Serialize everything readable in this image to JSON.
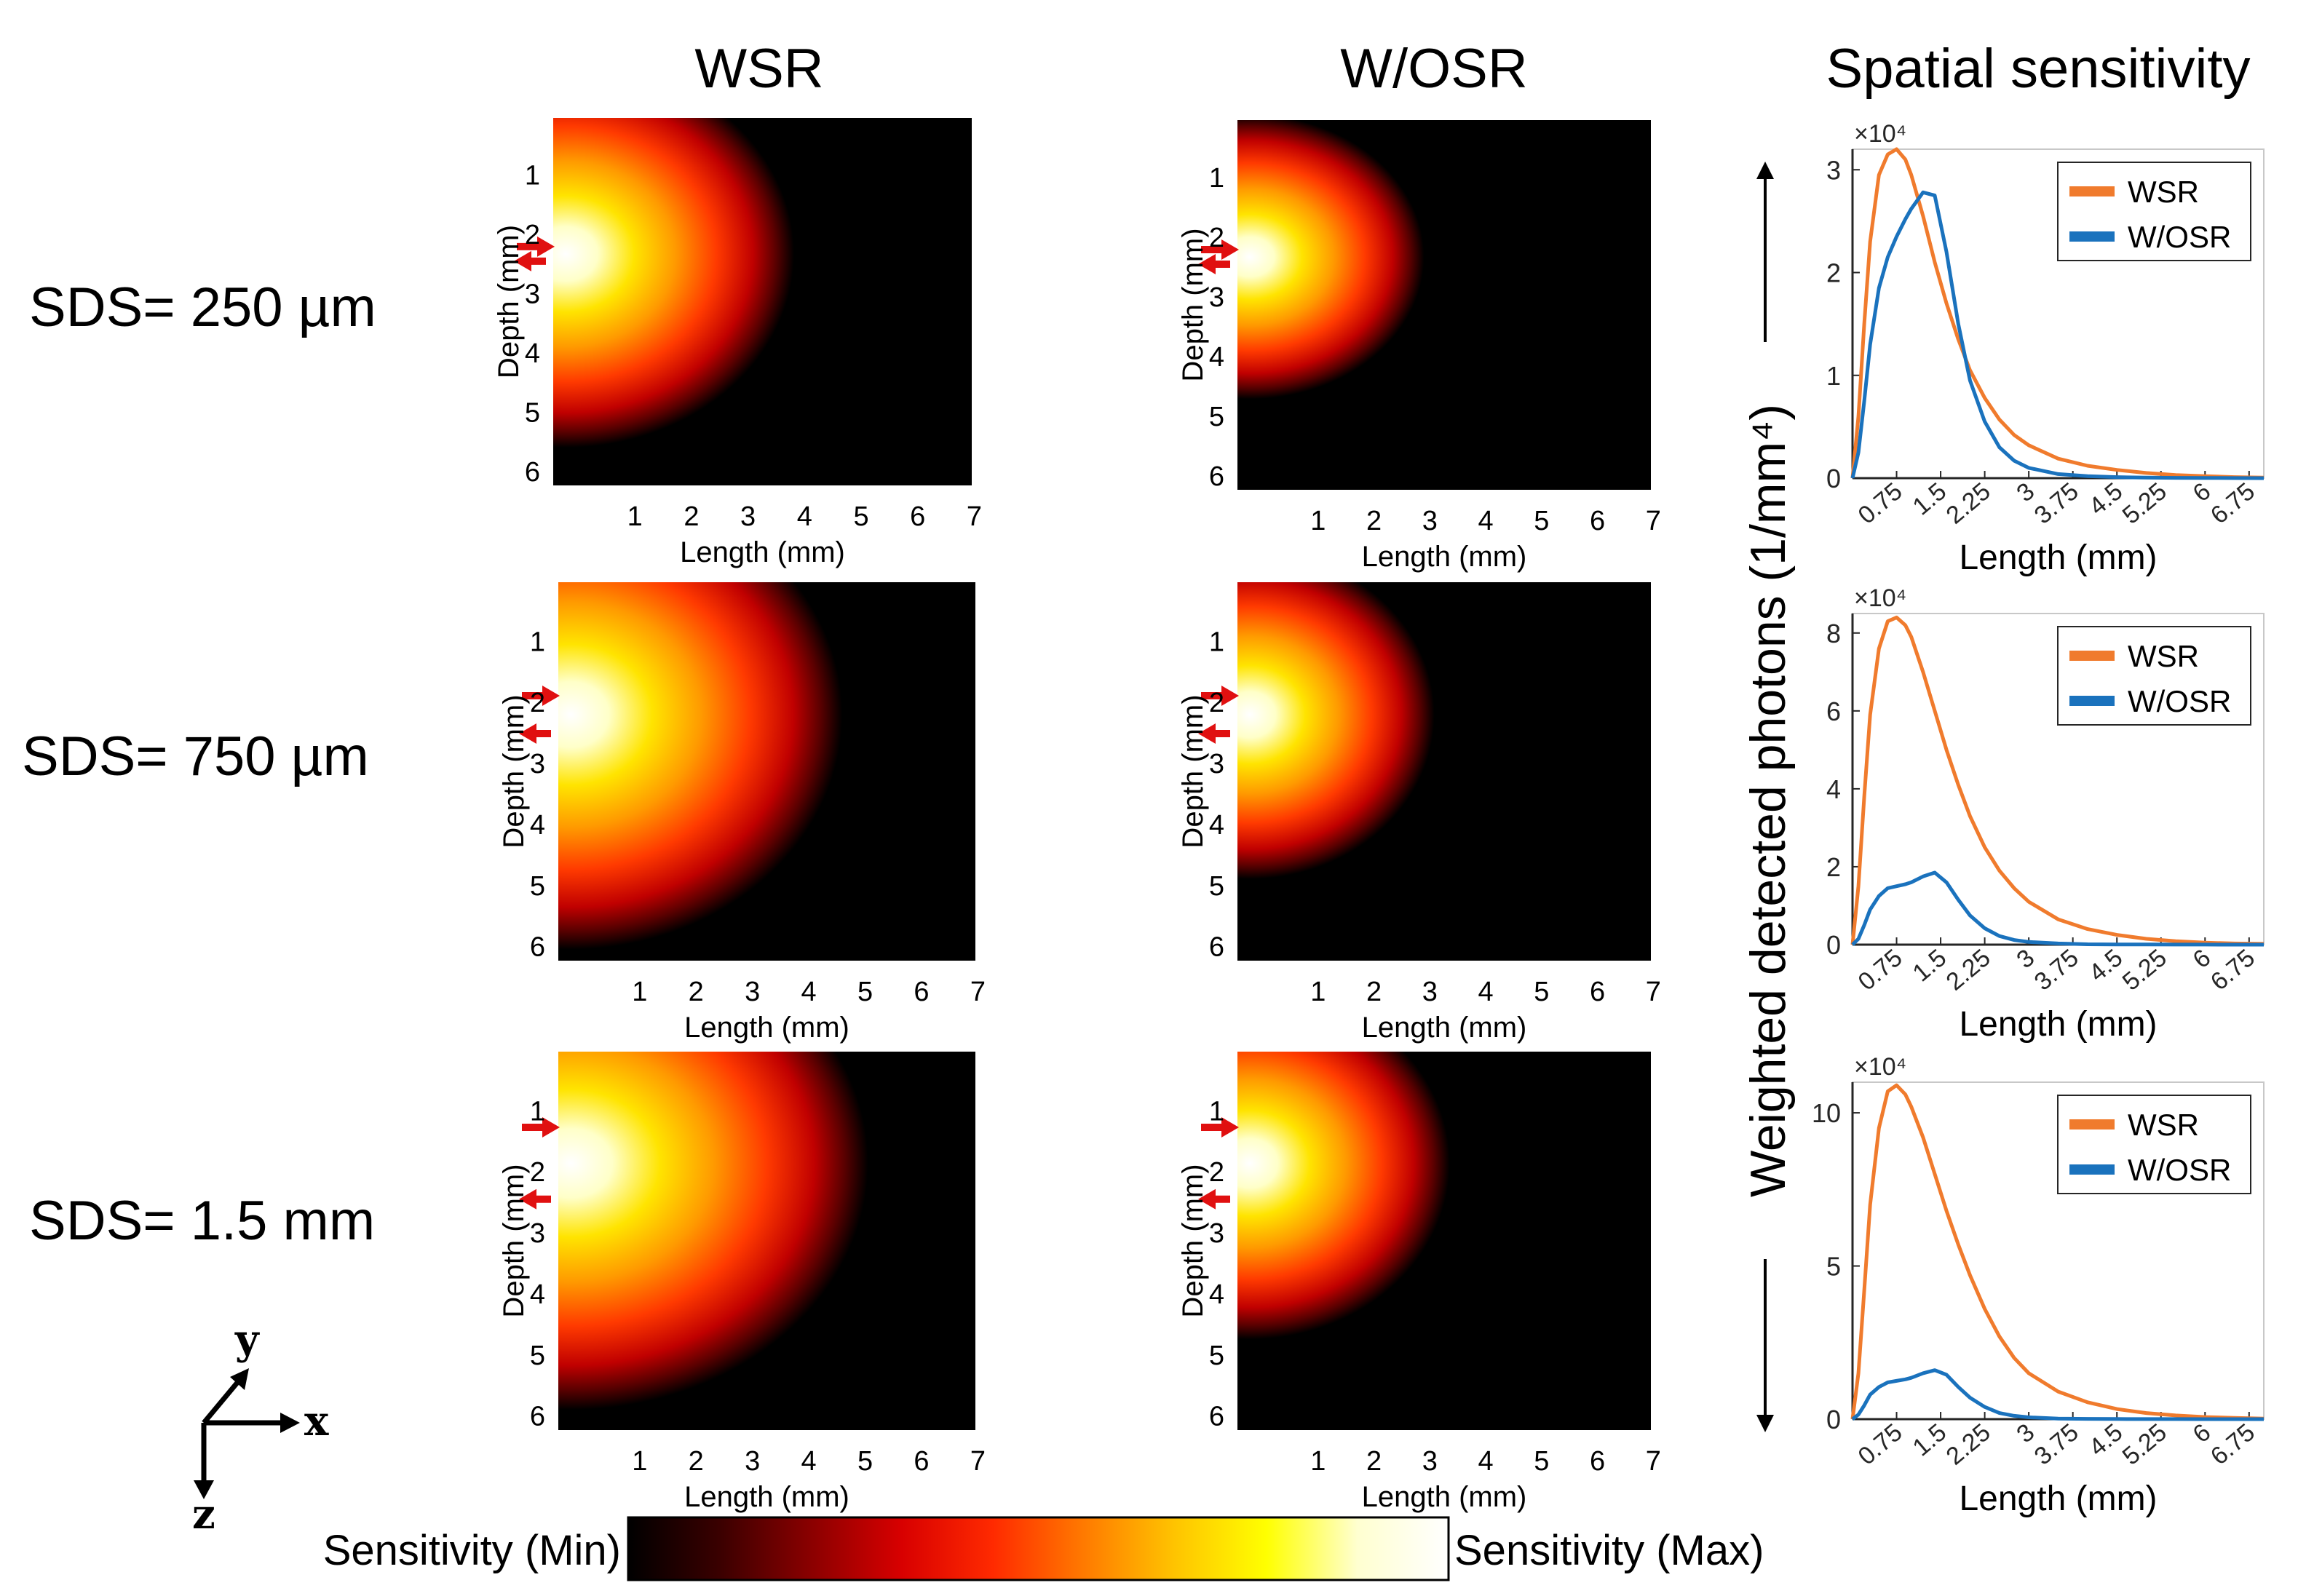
{
  "headers": {
    "col1": "WSR",
    "col2": "W/OSR",
    "col3": "Spatial sensitivity"
  },
  "rows": [
    {
      "label": "SDS= 250 µm"
    },
    {
      "label": "SDS= 750 µm"
    },
    {
      "label": "SDS= 1.5 mm"
    }
  ],
  "heatmap": {
    "xlabel": "Length (mm)",
    "ylabel": "Depth (mm)",
    "xticks": [
      "1",
      "2",
      "3",
      "4",
      "5",
      "6",
      "7"
    ],
    "yticks": [
      "1",
      "2",
      "3",
      "4",
      "5",
      "6"
    ]
  },
  "colorbar": {
    "min_label": "Sensitivity (Min)",
    "max_label": "Sensitivity (Max)",
    "colors": [
      "#000000",
      "#3a0000",
      "#8a0000",
      "#d80000",
      "#ff2a00",
      "#ff7a00",
      "#ffc400",
      "#ffff00",
      "#ffffd0",
      "#ffffff"
    ]
  },
  "shared_ylabel": "Weighted detected photons (1/mm⁴)",
  "axes_glyph": {
    "x": "x",
    "y": "y",
    "z": "z"
  },
  "colors": {
    "WSR": "#f07b2d",
    "W/OSR": "#1a72bd"
  },
  "chart_data": [
    {
      "type": "line",
      "title": "",
      "xlabel": "Length (mm)",
      "ylabel": "",
      "exponent_label": "×10⁴",
      "xlim": [
        0,
        7
      ],
      "ylim": [
        0,
        3.2
      ],
      "yticks": [
        0,
        1,
        2,
        3
      ],
      "xticks": [
        "0.75",
        "1.5",
        "2.25",
        "3",
        "3.75",
        "4.5",
        "5.25",
        "6",
        "6.75"
      ],
      "legend": "top-right",
      "x": [
        0,
        0.1,
        0.2,
        0.3,
        0.45,
        0.6,
        0.75,
        0.9,
        1.0,
        1.2,
        1.4,
        1.6,
        1.8,
        2.0,
        2.25,
        2.5,
        2.75,
        3.0,
        3.5,
        4.0,
        4.5,
        5.0,
        5.5,
        6.0,
        6.5,
        7.0
      ],
      "series": [
        {
          "name": "WSR",
          "color": "#f07b2d",
          "values": [
            0,
            0.6,
            1.5,
            2.3,
            2.95,
            3.15,
            3.2,
            3.1,
            2.95,
            2.55,
            2.1,
            1.7,
            1.35,
            1.05,
            0.78,
            0.57,
            0.42,
            0.32,
            0.19,
            0.12,
            0.08,
            0.05,
            0.03,
            0.02,
            0.01,
            0.005
          ]
        },
        {
          "name": "W/OSR",
          "color": "#1a72bd",
          "values": [
            0,
            0.25,
            0.75,
            1.3,
            1.85,
            2.15,
            2.35,
            2.52,
            2.62,
            2.78,
            2.75,
            2.2,
            1.5,
            0.95,
            0.55,
            0.3,
            0.17,
            0.1,
            0.04,
            0.02,
            0.01,
            0.005,
            0.003,
            0.002,
            0.001,
            0
          ]
        }
      ]
    },
    {
      "type": "line",
      "title": "",
      "xlabel": "Length (mm)",
      "ylabel": "",
      "exponent_label": "×10⁴",
      "xlim": [
        0,
        7
      ],
      "ylim": [
        0,
        8.5
      ],
      "yticks": [
        0,
        2,
        4,
        6,
        8
      ],
      "xticks": [
        "0.75",
        "1.5",
        "2.25",
        "3",
        "3.75",
        "4.5",
        "5.25",
        "6",
        "6.75"
      ],
      "legend": "top-right",
      "x": [
        0,
        0.1,
        0.2,
        0.3,
        0.45,
        0.6,
        0.75,
        0.9,
        1.0,
        1.2,
        1.4,
        1.6,
        1.8,
        2.0,
        2.25,
        2.5,
        2.75,
        3.0,
        3.5,
        4.0,
        4.5,
        5.0,
        5.5,
        6.0,
        6.5,
        7.0
      ],
      "series": [
        {
          "name": "WSR",
          "color": "#f07b2d",
          "values": [
            0,
            1.5,
            3.8,
            5.9,
            7.6,
            8.3,
            8.4,
            8.2,
            7.9,
            7.0,
            6.0,
            5.0,
            4.1,
            3.3,
            2.5,
            1.9,
            1.45,
            1.1,
            0.65,
            0.4,
            0.25,
            0.15,
            0.09,
            0.05,
            0.03,
            0.02
          ]
        },
        {
          "name": "W/OSR",
          "color": "#1a72bd",
          "values": [
            0,
            0.15,
            0.5,
            0.9,
            1.25,
            1.45,
            1.5,
            1.55,
            1.6,
            1.75,
            1.85,
            1.6,
            1.15,
            0.75,
            0.42,
            0.22,
            0.12,
            0.07,
            0.03,
            0.01,
            0.005,
            0.003,
            0.002,
            0.001,
            0,
            0
          ]
        }
      ]
    },
    {
      "type": "line",
      "title": "",
      "xlabel": "Length (mm)",
      "ylabel": "",
      "exponent_label": "×10⁴",
      "xlim": [
        0,
        7
      ],
      "ylim": [
        0,
        11
      ],
      "yticks": [
        0,
        5,
        10
      ],
      "xticks": [
        "0.75",
        "1.5",
        "2.25",
        "3",
        "3.75",
        "4.5",
        "5.25",
        "6",
        "6.75"
      ],
      "legend": "top-right",
      "x": [
        0,
        0.1,
        0.2,
        0.3,
        0.45,
        0.6,
        0.75,
        0.9,
        1.0,
        1.2,
        1.4,
        1.6,
        1.8,
        2.0,
        2.25,
        2.5,
        2.75,
        3.0,
        3.5,
        4.0,
        4.5,
        5.0,
        5.5,
        6.0,
        6.5,
        7.0
      ],
      "series": [
        {
          "name": "WSR",
          "color": "#f07b2d",
          "values": [
            0,
            1.5,
            4.2,
            7.0,
            9.5,
            10.7,
            10.9,
            10.6,
            10.2,
            9.2,
            8.0,
            6.8,
            5.7,
            4.7,
            3.6,
            2.7,
            2.0,
            1.5,
            0.9,
            0.55,
            0.33,
            0.2,
            0.12,
            0.07,
            0.04,
            0.02
          ]
        },
        {
          "name": "W/OSR",
          "color": "#1a72bd",
          "values": [
            0,
            0.15,
            0.45,
            0.8,
            1.05,
            1.2,
            1.25,
            1.3,
            1.35,
            1.5,
            1.6,
            1.45,
            1.05,
            0.7,
            0.4,
            0.2,
            0.11,
            0.06,
            0.02,
            0.01,
            0.005,
            0.003,
            0.002,
            0.001,
            0,
            0
          ]
        }
      ]
    }
  ]
}
